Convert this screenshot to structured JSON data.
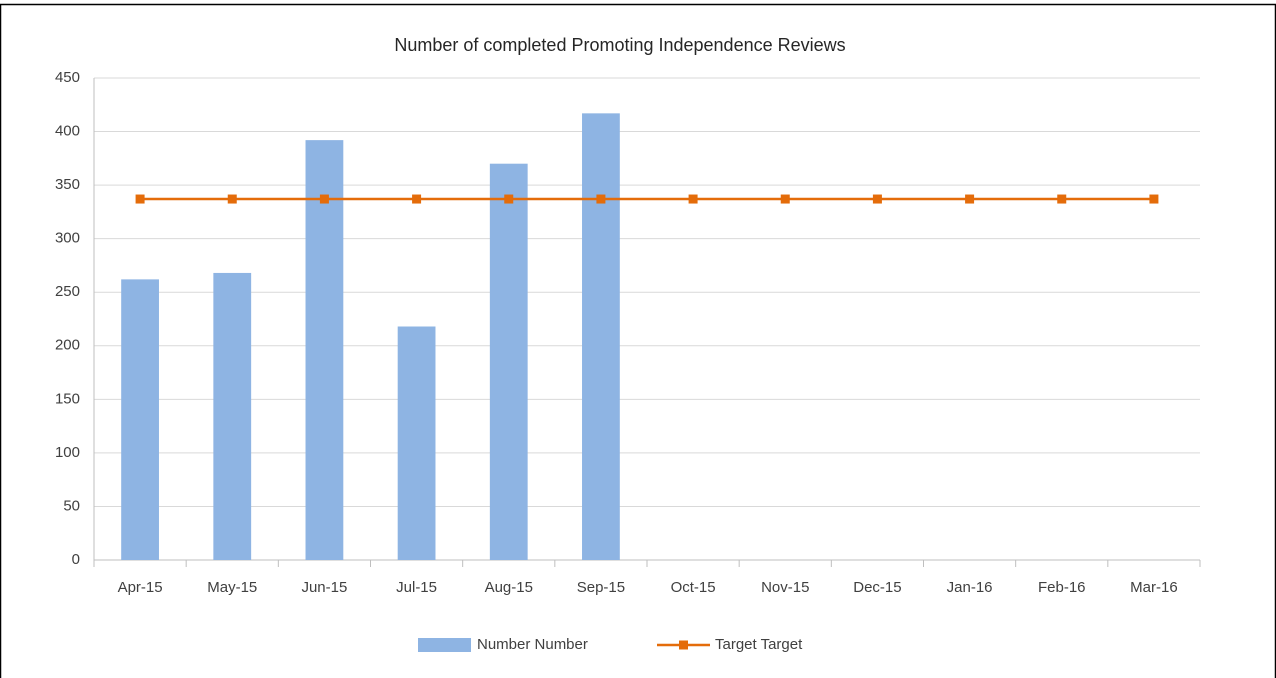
{
  "chart_data": {
    "type": "bar",
    "title": "Number of completed Promoting Independence Reviews",
    "categories": [
      "Apr-15",
      "May-15",
      "Jun-15",
      "Jul-15",
      "Aug-15",
      "Sep-15",
      "Oct-15",
      "Nov-15",
      "Dec-15",
      "Jan-16",
      "Feb-16",
      "Mar-16"
    ],
    "series": [
      {
        "name": "Number Number",
        "type": "bar",
        "color": "#8eb4e3",
        "values": [
          262,
          268,
          392,
          218,
          370,
          417,
          null,
          null,
          null,
          null,
          null,
          null
        ]
      },
      {
        "name": "Target Target",
        "type": "line",
        "color": "#e46c0a",
        "values": [
          337,
          337,
          337,
          337,
          337,
          337,
          337,
          337,
          337,
          337,
          337,
          337
        ]
      }
    ],
    "ylim": [
      0,
      450
    ],
    "yticks": [
      0,
      50,
      100,
      150,
      200,
      250,
      300,
      350,
      400,
      450
    ],
    "grid": true,
    "legend": "bottom"
  }
}
